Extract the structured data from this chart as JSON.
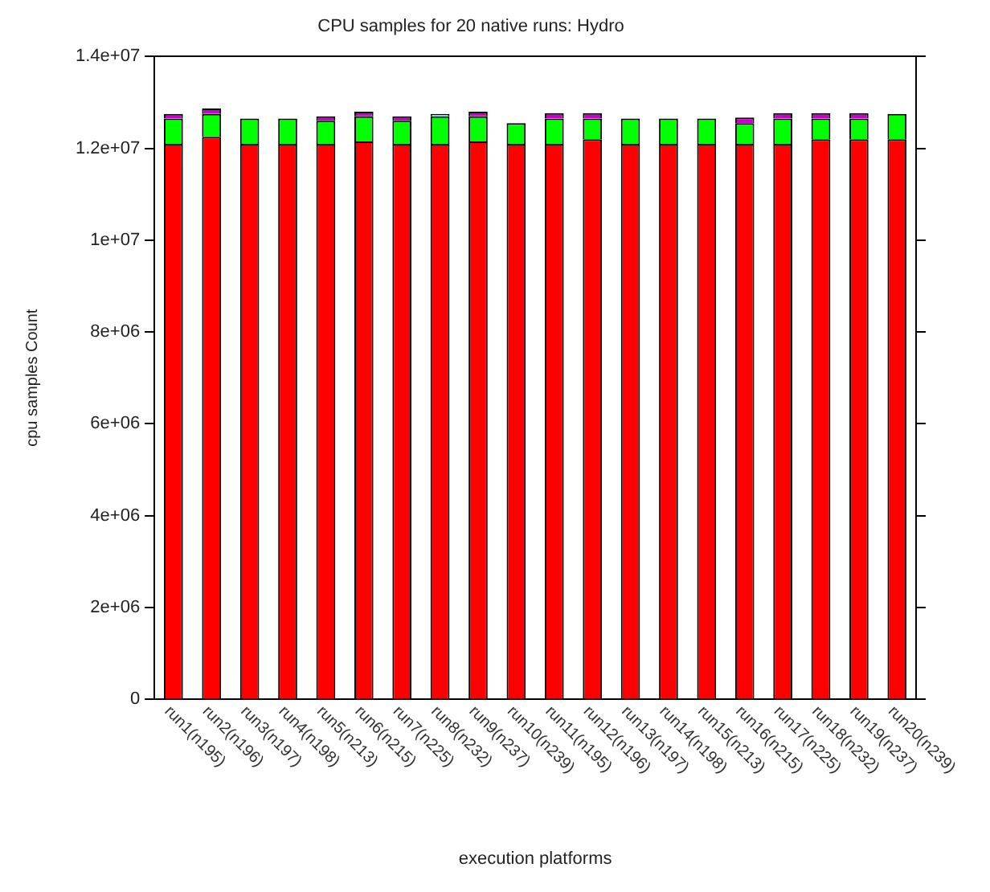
{
  "chart_data": {
    "type": "bar",
    "title": "CPU samples for 20 native runs: Hydro",
    "xlabel": "execution platforms",
    "ylabel": "cpu samples Count",
    "categories": [
      "run1(n195)",
      "run2(n196)",
      "run3(n197)",
      "run4(n198)",
      "run5(n213)",
      "run6(n215)",
      "run7(n225)",
      "run8(n232)",
      "run9(n237)",
      "run10(n239)",
      "run11(n195)",
      "run12(n196)",
      "run13(n197)",
      "run14(n198)",
      "run15(n213)",
      "run16(n215)",
      "run17(n225)",
      "run18(n232)",
      "run19(n237)",
      "run20(n239)"
    ],
    "stacked": true,
    "grid": false,
    "legend": false,
    "ylim": [
      0,
      14000000
    ],
    "yticks": [
      {
        "value": 0,
        "label": "0"
      },
      {
        "value": 2000000,
        "label": "2e+06"
      },
      {
        "value": 4000000,
        "label": "4e+06"
      },
      {
        "value": 6000000,
        "label": "6e+06"
      },
      {
        "value": 8000000,
        "label": "8e+06"
      },
      {
        "value": 10000000,
        "label": "1e+07"
      },
      {
        "value": 12000000,
        "label": "1.2e+07"
      },
      {
        "value": 14000000,
        "label": "1.4e+07"
      }
    ],
    "series": [
      {
        "color": "#ff0000",
        "values": [
          12100000,
          12250000,
          12100000,
          12100000,
          12100000,
          12150000,
          12100000,
          12100000,
          12150000,
          12100000,
          12100000,
          12200000,
          12100000,
          12100000,
          12100000,
          12100000,
          12100000,
          12200000,
          12200000,
          12200000
        ]
      },
      {
        "color": "#00ff00",
        "values": [
          550000,
          500000,
          550000,
          550000,
          500000,
          550000,
          500000,
          600000,
          550000,
          450000,
          550000,
          450000,
          550000,
          550000,
          550000,
          450000,
          550000,
          450000,
          450000,
          550000
        ]
      },
      {
        "color": "#00ffff",
        "values": [
          0,
          0,
          0,
          0,
          0,
          0,
          0,
          50000,
          0,
          0,
          0,
          0,
          0,
          0,
          0,
          0,
          0,
          0,
          0,
          0
        ]
      },
      {
        "color": "#cc00cc",
        "values": [
          100000,
          120000,
          0,
          0,
          100000,
          100000,
          100000,
          0,
          100000,
          0,
          120000,
          120000,
          0,
          0,
          0,
          120000,
          120000,
          120000,
          120000,
          0
        ]
      }
    ]
  }
}
